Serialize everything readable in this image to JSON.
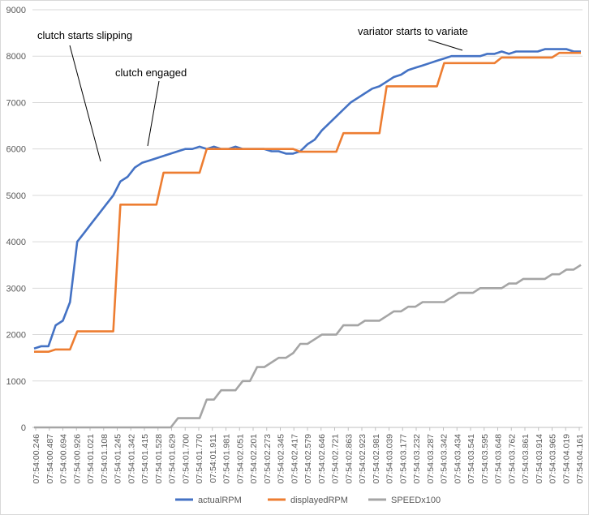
{
  "chart_data": {
    "type": "line",
    "title": "",
    "xlabel": "",
    "ylabel": "",
    "ylim": [
      0,
      9000
    ],
    "y_ticks": [
      0,
      1000,
      2000,
      3000,
      4000,
      5000,
      6000,
      7000,
      8000,
      9000
    ],
    "grid": "horizontal",
    "legend_position": "bottom",
    "x_tick_labels": [
      "07:54:00.246",
      "07:54:00.487",
      "07:54:00.694",
      "07:54:00.926",
      "07:54:01.021",
      "07:54:01.108",
      "07:54:01.245",
      "07:54:01.342",
      "07:54:01.415",
      "07:54:01.528",
      "07:54:01.629",
      "07:54:01.700",
      "07:54:01.770",
      "07:54:01.911",
      "07:54:01.981",
      "07:54:02.051",
      "07:54:02.201",
      "07:54:02.273",
      "07:54:02.345",
      "07:54:02.417",
      "07:54:02.579",
      "07:54:02.646",
      "07:54:02.721",
      "07:54:02.863",
      "07:54:02.923",
      "07:54:02.981",
      "07:54:03.039",
      "07:54:03.177",
      "07:54:03.232",
      "07:54:03.287",
      "07:54:03.342",
      "07:54:03.434",
      "07:54:03.541",
      "07:54:03.595",
      "07:54:03.648",
      "07:54:03.762",
      "07:54:03.861",
      "07:54:03.914",
      "07:54:03.965",
      "07:54:04.019",
      "07:54:04.161"
    ],
    "series": [
      {
        "name": "actualRPM",
        "color": "#4472c4",
        "values": [
          1700,
          1750,
          1750,
          2200,
          2300,
          2700,
          4000,
          4200,
          4400,
          4600,
          4800,
          5000,
          5300,
          5400,
          5600,
          5700,
          5750,
          5800,
          5850,
          5900,
          5950,
          6000,
          6000,
          6050,
          6000,
          6050,
          6000,
          6000,
          6050,
          6000,
          6000,
          6000,
          6000,
          5950,
          5950,
          5900,
          5900,
          5950,
          6100,
          6200,
          6400,
          6550,
          6700,
          6850,
          7000,
          7100,
          7200,
          7300,
          7350,
          7450,
          7550,
          7600,
          7700,
          7750,
          7800,
          7850,
          7900,
          7950,
          8000,
          8000,
          8000,
          8000,
          8000,
          8050,
          8050,
          8100,
          8050,
          8100,
          8100,
          8100,
          8100,
          8150,
          8150,
          8150,
          8150,
          8100,
          8100
        ]
      },
      {
        "name": "displayedRPM",
        "color": "#ed7d31",
        "values": [
          1630,
          1630,
          1630,
          1680,
          1680,
          1680,
          2070,
          2070,
          2070,
          2070,
          2070,
          2070,
          4800,
          4800,
          4800,
          4800,
          4800,
          4800,
          5490,
          5490,
          5490,
          5490,
          5490,
          5490,
          6000,
          6000,
          6000,
          6000,
          6000,
          6000,
          6000,
          6000,
          6000,
          6000,
          6000,
          6000,
          6000,
          5940,
          5940,
          5940,
          5940,
          5940,
          5940,
          6340,
          6340,
          6340,
          6340,
          6340,
          6340,
          7350,
          7350,
          7350,
          7350,
          7350,
          7350,
          7350,
          7350,
          7850,
          7850,
          7850,
          7850,
          7850,
          7850,
          7850,
          7850,
          7970,
          7970,
          7970,
          7970,
          7970,
          7970,
          7970,
          7970,
          8070,
          8070,
          8070,
          8070
        ]
      },
      {
        "name": "SPEEDx100",
        "color": "#a5a5a5",
        "values": [
          0,
          0,
          0,
          0,
          0,
          0,
          0,
          0,
          0,
          0,
          0,
          0,
          0,
          0,
          0,
          0,
          0,
          0,
          0,
          0,
          200,
          200,
          200,
          200,
          600,
          600,
          800,
          800,
          800,
          1000,
          1000,
          1300,
          1300,
          1400,
          1500,
          1500,
          1600,
          1800,
          1800,
          1900,
          2000,
          2000,
          2000,
          2200,
          2200,
          2200,
          2300,
          2300,
          2300,
          2400,
          2500,
          2500,
          2600,
          2600,
          2700,
          2700,
          2700,
          2700,
          2800,
          2900,
          2900,
          2900,
          3000,
          3000,
          3000,
          3000,
          3100,
          3100,
          3200,
          3200,
          3200,
          3200,
          3300,
          3300,
          3400,
          3400,
          3500
        ]
      }
    ],
    "annotations": [
      {
        "text": "clutch starts slipping",
        "target_index": 9
      },
      {
        "text": "clutch engaged",
        "target_index": 16
      },
      {
        "text": "variator starts to variate",
        "target_index": 62
      }
    ]
  }
}
